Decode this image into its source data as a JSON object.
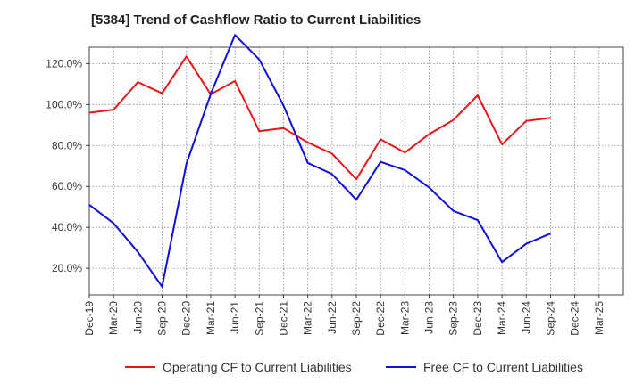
{
  "title": "[5384]  Trend of Cashflow Ratio to Current Liabilities",
  "chart_data": {
    "type": "line",
    "title": "[5384]  Trend of Cashflow Ratio to Current Liabilities",
    "x_tick_labels": [
      "Dec-19",
      "Mar-20",
      "Jun-20",
      "Sep-20",
      "Dec-20",
      "Mar-21",
      "Jun-21",
      "Sep-21",
      "Dec-21",
      "Mar-22",
      "Jun-22",
      "Sep-22",
      "Dec-22",
      "Mar-23",
      "Jun-23",
      "Sep-23",
      "Dec-23",
      "Mar-24",
      "Jun-24",
      "Sep-24",
      "Dec-24",
      "Mar-25"
    ],
    "y_ticks": [
      20,
      40,
      60,
      80,
      100,
      120
    ],
    "y_tick_labels": [
      "20.0%",
      "40.0%",
      "60.0%",
      "80.0%",
      "100.0%",
      "120.0%"
    ],
    "ylim": [
      7,
      128
    ],
    "grid": true,
    "legend_position": "bottom",
    "series": [
      {
        "name": "Operating CF to Current Liabilities",
        "color": "#e8161b",
        "values": [
          96,
          97.5,
          111,
          105.5,
          123.5,
          105,
          111.5,
          87,
          88.5,
          81.5,
          76,
          63.5,
          83,
          76.5,
          85.5,
          92.5,
          104.5,
          80.5,
          92,
          93.5,
          null,
          null
        ]
      },
      {
        "name": "Free CF to Current Liabilities",
        "color": "#1010d8",
        "values": [
          51,
          42,
          28,
          11,
          71,
          105,
          134,
          122,
          99.5,
          71.5,
          66,
          53.5,
          72,
          68,
          59.5,
          48,
          43.5,
          23,
          32,
          37,
          null,
          null
        ]
      }
    ]
  }
}
